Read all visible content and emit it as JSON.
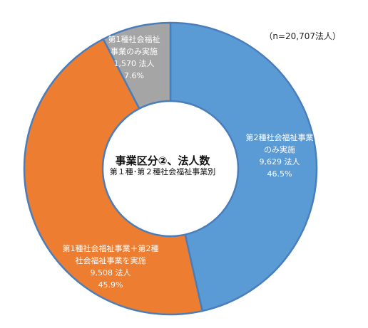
{
  "chart_data": {
    "type": "pie",
    "style": "donut",
    "title": "事業区分②、法人数",
    "subtitle": "第１種･第２種社会福祉事業別",
    "note": "（n=20,707法人）",
    "total": 20707,
    "slices": [
      {
        "line1": "第2種社会福祉事業",
        "line2": "のみ実施",
        "count": "9,629 法人",
        "percent": "46.5%",
        "value": 46.5,
        "color": "#5B9BD5"
      },
      {
        "line1": "第1種社会福祉事業＋第2種",
        "line2": "社会福祉事業を実施",
        "count": "9,508 法人",
        "percent": "45.9%",
        "value": 45.9,
        "color": "#ED7D31"
      },
      {
        "line1": "第1種社会福祉",
        "line2": "事業のみ実施",
        "count": "1,570 法人",
        "percent": "7.6%",
        "value": 7.6,
        "color": "#A5A5A5"
      }
    ],
    "border_color": "#4A7EBB"
  }
}
